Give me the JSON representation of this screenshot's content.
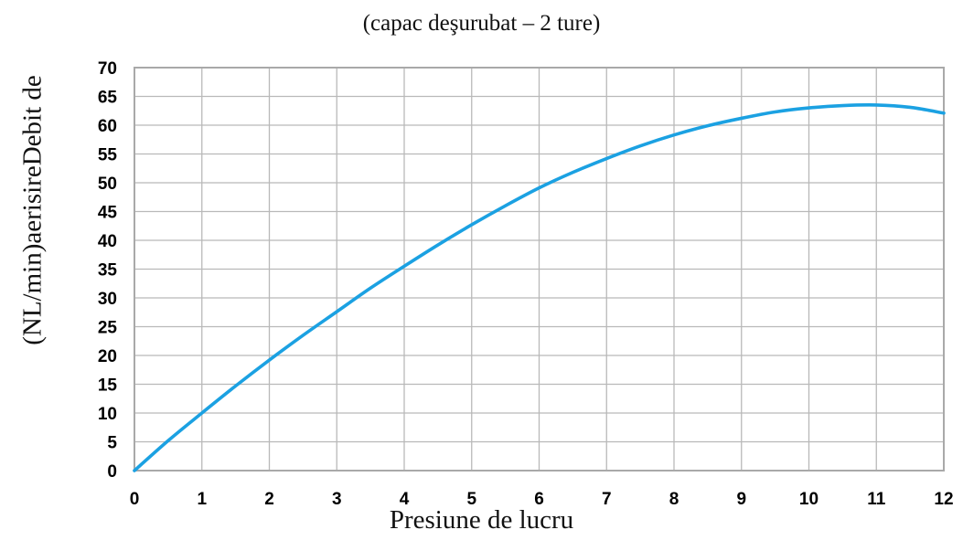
{
  "chart_data": {
    "type": "line",
    "title": "",
    "subtitle": "(capac deşurubat – 2 ture)",
    "xlabel": "Presiune de lucru",
    "ylabel": "(NL/min)aerisireDebit de",
    "xlim": [
      0,
      12
    ],
    "ylim": [
      0,
      70
    ],
    "x_ticks": [
      "0",
      "1",
      "2",
      "3",
      "4",
      "5",
      "6",
      "7",
      "8",
      "9",
      "10",
      "11",
      "12"
    ],
    "y_ticks": [
      "0",
      "5",
      "10",
      "15",
      "20",
      "25",
      "30",
      "35",
      "40",
      "45",
      "50",
      "55",
      "60",
      "65",
      "70"
    ],
    "grid": true,
    "legend": "none",
    "series": [
      {
        "color": "#1ba1e2",
        "x": [
          0,
          0.5,
          1,
          1.5,
          2,
          2.5,
          3,
          3.5,
          4,
          4.5,
          5,
          5.5,
          6,
          6.5,
          7,
          7.5,
          8,
          8.5,
          9,
          9.5,
          10,
          10.5,
          11,
          11.5,
          12
        ],
        "y": [
          0,
          5.2,
          10.0,
          14.7,
          19.2,
          23.5,
          27.6,
          31.7,
          35.5,
          39.2,
          42.7,
          46.0,
          49.1,
          51.8,
          54.2,
          56.4,
          58.3,
          59.9,
          61.2,
          62.3,
          63.0,
          63.4,
          63.5,
          63.1,
          62.1
        ]
      }
    ]
  }
}
